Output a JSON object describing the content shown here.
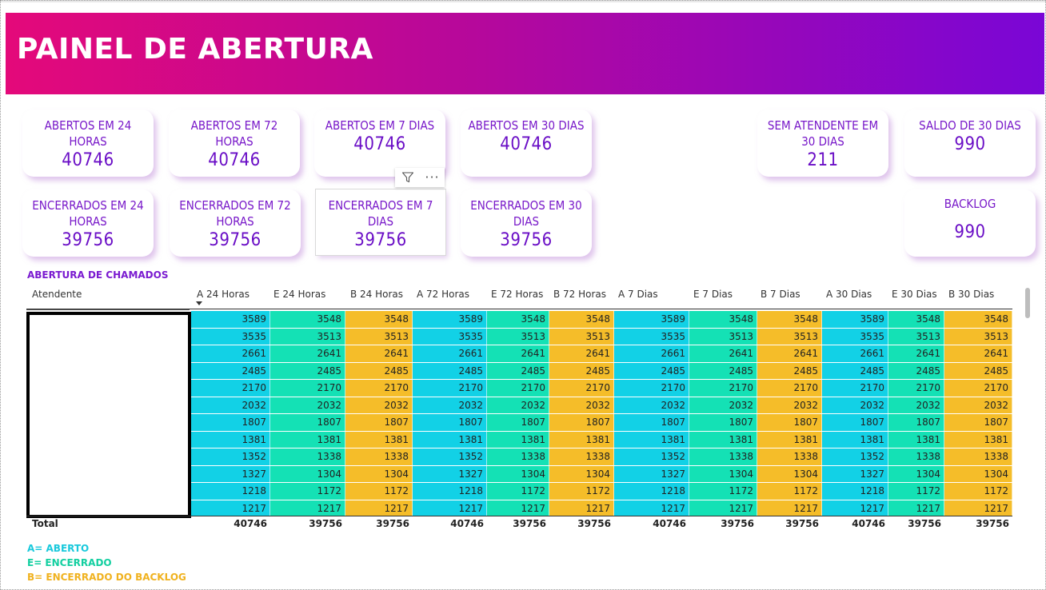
{
  "banner": {
    "title": "PAINEL DE ABERTURA"
  },
  "cards": [
    {
      "label": "ABERTOS EM 24 HORAS",
      "value": "40746"
    },
    {
      "label": "ABERTOS EM 72 HORAS",
      "value": "40746"
    },
    {
      "label": "ABERTOS EM 7 DIAS",
      "value": "40746"
    },
    {
      "label": "ABERTOS EM 30 DIAS",
      "value": "40746"
    },
    {
      "label": "SEM ATENDENTE EM 30 DIAS",
      "value": "211"
    },
    {
      "label": "SALDO DE 30 DIAS",
      "value": "990"
    },
    {
      "label": "ENCERRADOS EM 24 HORAS",
      "value": "39756"
    },
    {
      "label": "ENCERRADOS EM 72 HORAS",
      "value": "39756"
    },
    {
      "label": "ENCERRADOS EM 7 DIAS",
      "value": "39756"
    },
    {
      "label": "ENCERRADOS EM 30 DIAS",
      "value": "39756"
    },
    {
      "label": "BACKLOG",
      "value": "990"
    }
  ],
  "table": {
    "title": "ABERTURA DE CHAMADOS",
    "first_column": "Atendente",
    "columns": [
      "A 24 Horas",
      "E 24 Horas",
      "B 24 Horas",
      "A 72 Horas",
      "E 72 Horas",
      "B 72 Horas",
      "A 7 Dias",
      "E 7 Dias",
      "B 7 Dias",
      "A 30 Dias",
      "E 30 Dias",
      "B 30 Dias"
    ],
    "column_types": [
      "a",
      "e",
      "b",
      "a",
      "e",
      "b",
      "a",
      "e",
      "b",
      "a",
      "e",
      "b"
    ],
    "rows": [
      [
        "3589",
        "3548",
        "3548",
        "3589",
        "3548",
        "3548",
        "3589",
        "3548",
        "3548",
        "3589",
        "3548",
        "3548"
      ],
      [
        "3535",
        "3513",
        "3513",
        "3535",
        "3513",
        "3513",
        "3535",
        "3513",
        "3513",
        "3535",
        "3513",
        "3513"
      ],
      [
        "2661",
        "2641",
        "2641",
        "2661",
        "2641",
        "2641",
        "2661",
        "2641",
        "2641",
        "2661",
        "2641",
        "2641"
      ],
      [
        "2485",
        "2485",
        "2485",
        "2485",
        "2485",
        "2485",
        "2485",
        "2485",
        "2485",
        "2485",
        "2485",
        "2485"
      ],
      [
        "2170",
        "2170",
        "2170",
        "2170",
        "2170",
        "2170",
        "2170",
        "2170",
        "2170",
        "2170",
        "2170",
        "2170"
      ],
      [
        "2032",
        "2032",
        "2032",
        "2032",
        "2032",
        "2032",
        "2032",
        "2032",
        "2032",
        "2032",
        "2032",
        "2032"
      ],
      [
        "1807",
        "1807",
        "1807",
        "1807",
        "1807",
        "1807",
        "1807",
        "1807",
        "1807",
        "1807",
        "1807",
        "1807"
      ],
      [
        "1381",
        "1381",
        "1381",
        "1381",
        "1381",
        "1381",
        "1381",
        "1381",
        "1381",
        "1381",
        "1381",
        "1381"
      ],
      [
        "1352",
        "1338",
        "1338",
        "1352",
        "1338",
        "1338",
        "1352",
        "1338",
        "1338",
        "1352",
        "1338",
        "1338"
      ],
      [
        "1327",
        "1304",
        "1304",
        "1327",
        "1304",
        "1304",
        "1327",
        "1304",
        "1304",
        "1327",
        "1304",
        "1304"
      ],
      [
        "1218",
        "1172",
        "1172",
        "1218",
        "1172",
        "1172",
        "1218",
        "1172",
        "1172",
        "1218",
        "1172",
        "1172"
      ],
      [
        "1217",
        "1217",
        "1217",
        "1217",
        "1217",
        "1217",
        "1217",
        "1217",
        "1217",
        "1217",
        "1217",
        "1217"
      ]
    ],
    "total_label": "Total",
    "totals": [
      "40746",
      "39756",
      "39756",
      "40746",
      "39756",
      "39756",
      "40746",
      "39756",
      "39756",
      "40746",
      "39756",
      "39756"
    ]
  },
  "legend": [
    {
      "text": "A= ABERTO",
      "color": "#19c9dc"
    },
    {
      "text": "E= ENCERRADO",
      "color": "#12cfa0"
    },
    {
      "text": "B= ENCERRADO DO BACKLOG",
      "color": "#f0b21f"
    }
  ],
  "colors": {
    "aberto": "#12d1e6",
    "encerrado": "#14e1b5",
    "backlog": "#f5bd29",
    "accent": "#6a0ec6"
  },
  "icons": {
    "filter": "filter-icon",
    "more": "more-options-icon"
  }
}
